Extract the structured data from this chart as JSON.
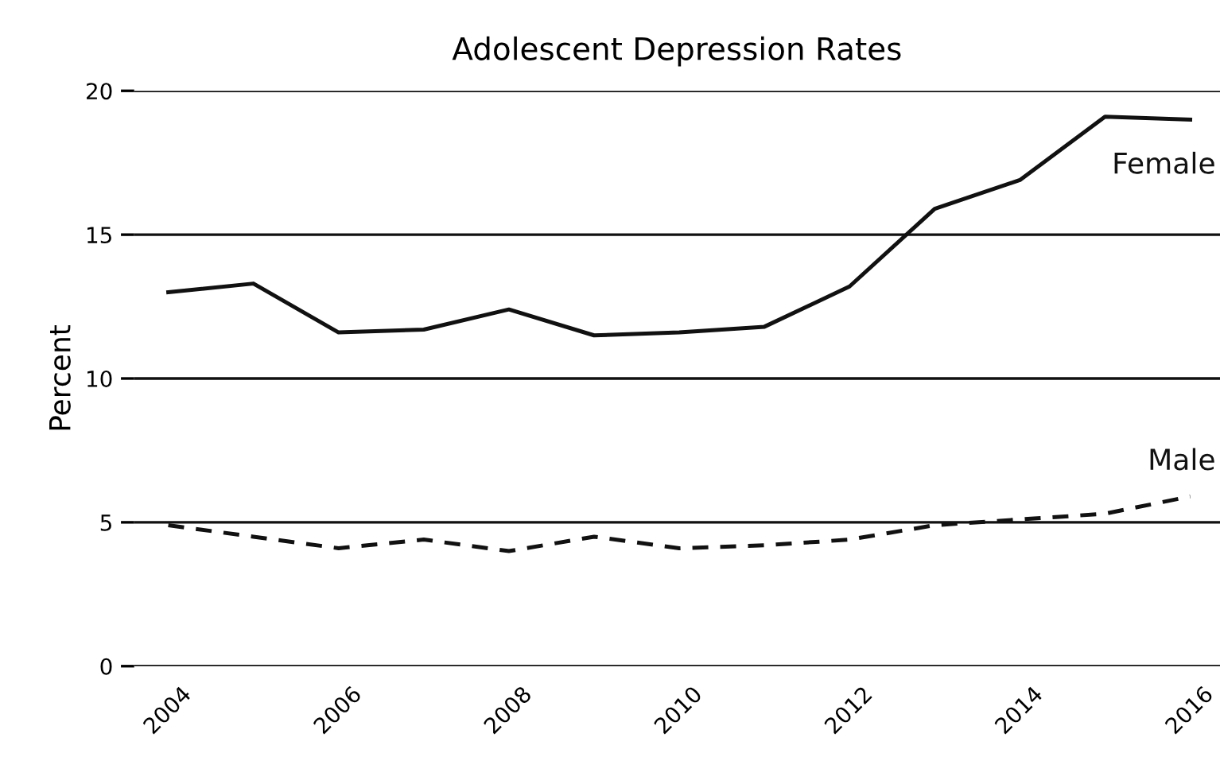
{
  "chart_data": {
    "type": "line",
    "title": "Adolescent Depression Rates",
    "ylabel": "Percent",
    "x": [
      2004,
      2005,
      2006,
      2007,
      2008,
      2009,
      2010,
      2011,
      2012,
      2013,
      2014,
      2015,
      2016
    ],
    "series": [
      {
        "name": "Female",
        "color": "#111111",
        "line_style": "solid",
        "values": [
          13.0,
          13.3,
          11.6,
          11.7,
          12.4,
          11.5,
          11.6,
          11.8,
          13.2,
          15.9,
          16.9,
          19.1,
          19.0
        ]
      },
      {
        "name": "Male",
        "color": "#111111",
        "line_style": "dashed",
        "values": [
          4.9,
          4.5,
          4.1,
          4.4,
          4.0,
          4.5,
          4.1,
          4.2,
          4.4,
          4.9,
          5.1,
          5.3,
          5.9
        ]
      }
    ],
    "xlim": [
      2003.6,
      2016.35
    ],
    "xticks": [
      2004,
      2006,
      2008,
      2010,
      2012,
      2014,
      2016
    ],
    "ylim": [
      0,
      20
    ],
    "yticks": [
      0,
      5,
      10,
      15,
      20
    ],
    "grid": "y",
    "legend": false,
    "marker": "none"
  }
}
